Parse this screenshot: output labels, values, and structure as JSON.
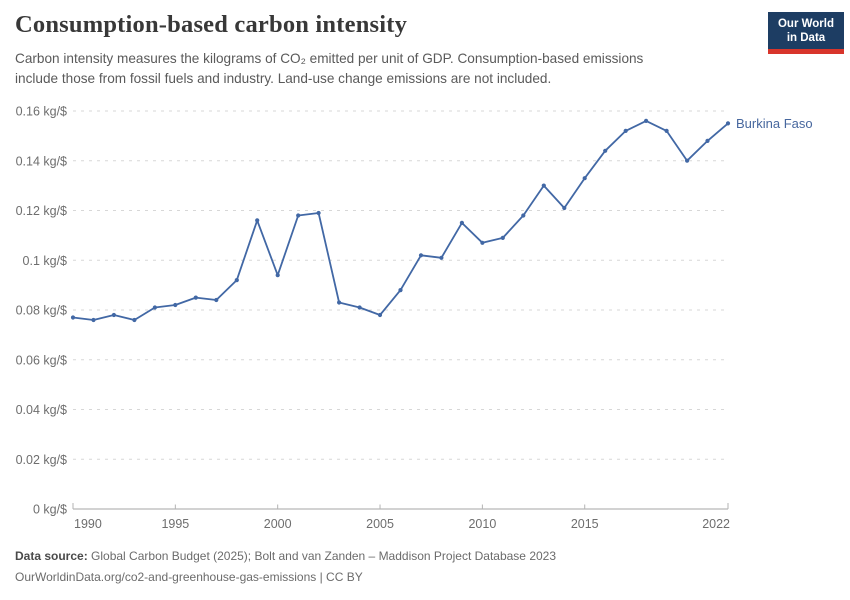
{
  "header": {
    "title": "Consumption-based carbon intensity",
    "subtitle_line1": "Carbon intensity measures the kilograms of CO₂ emitted per unit of GDP. Consumption-based emissions",
    "subtitle_line2": "include those from fossil fuels and industry. Land-use change emissions are not included.",
    "logo": {
      "line1": "Our World",
      "line2": "in Data"
    }
  },
  "chart_data": {
    "type": "line",
    "title": "Consumption-based carbon intensity",
    "unit": "kg/$",
    "x": [
      1990,
      1991,
      1992,
      1993,
      1994,
      1995,
      1996,
      1997,
      1998,
      1999,
      2000,
      2001,
      2002,
      2003,
      2004,
      2005,
      2006,
      2007,
      2008,
      2009,
      2010,
      2011,
      2012,
      2013,
      2014,
      2015,
      2016,
      2017,
      2018,
      2019,
      2020,
      2021,
      2022
    ],
    "series": [
      {
        "name": "Burkina Faso",
        "color": "#4268a5",
        "values": [
          0.077,
          0.076,
          0.078,
          0.076,
          0.081,
          0.082,
          0.085,
          0.084,
          0.092,
          0.116,
          0.094,
          0.118,
          0.119,
          0.083,
          0.081,
          0.078,
          0.088,
          0.102,
          0.101,
          0.115,
          0.107,
          0.109,
          0.118,
          0.13,
          0.121,
          0.133,
          0.144,
          0.152,
          0.156,
          0.152,
          0.14,
          0.148,
          0.155
        ]
      }
    ],
    "xlim": [
      1990,
      2022
    ],
    "ylim": [
      0,
      0.16
    ],
    "yticks": [
      0,
      0.02,
      0.04,
      0.06,
      0.08,
      0.1,
      0.12,
      0.14,
      0.16
    ],
    "ytick_labels": [
      "0 kg/$",
      "0.02 kg/$",
      "0.04 kg/$",
      "0.06 kg/$",
      "0.08 kg/$",
      "0.1 kg/$",
      "0.12 kg/$",
      "0.14 kg/$",
      "0.16 kg/$"
    ],
    "xticks": [
      1990,
      1995,
      2000,
      2005,
      2010,
      2015,
      2022
    ],
    "grid": "horizontal-dashed",
    "legend_position": "end-of-line"
  },
  "footer": {
    "source_label": "Data source:",
    "source_text": " Global Carbon Budget (2025); Bolt and van Zanden – Maddison Project Database 2023",
    "url_text": "OurWorldinData.org/co2-and-greenhouse-gas-emissions | CC BY"
  },
  "colors": {
    "line": "#4268a5",
    "series_label": "#47679e",
    "grid": "#d7d7d7",
    "axis": "#a6a6a6",
    "tick_mark": "#b3b3b3",
    "logo_bg": "#1d3d63",
    "logo_accent": "#d8352b"
  }
}
